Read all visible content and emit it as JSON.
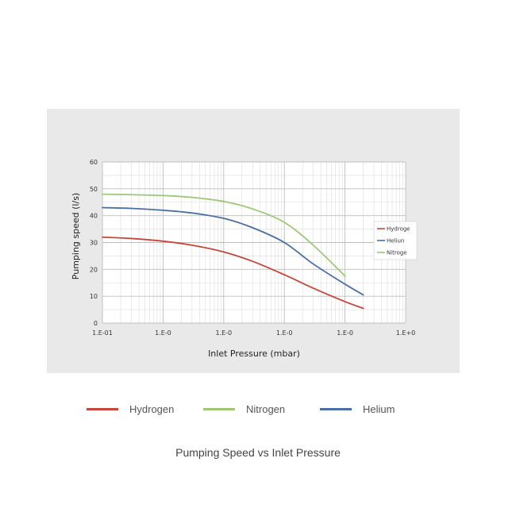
{
  "caption": "Pumping Speed vs Inlet Pressure",
  "colors": {
    "hydrogen": "#c9443a",
    "nitrogen": "#9dc876",
    "helium": "#4a6fa5",
    "panel_bg": "#e9e9e9",
    "plot_bg": "#ffffff",
    "grid_major": "#bdbdbd",
    "grid_minor": "#dcdcdc"
  },
  "bottom_legend": [
    {
      "label": "Hydrogen",
      "color": "#c9443a"
    },
    {
      "label": "Nitrogen",
      "color": "#9dc876"
    },
    {
      "label": "Helium",
      "color": "#4a6fa5"
    }
  ],
  "chart_data": {
    "type": "line",
    "title": "",
    "xlabel": "Inlet Pressure (mbar)",
    "ylabel": "Pumping speed (l/s)",
    "xscale": "log",
    "xlim": [
      1e-10,
      1e-05
    ],
    "ylim": [
      0,
      60
    ],
    "xticks": [
      1e-10,
      1e-09,
      1e-08,
      1e-07,
      1e-06,
      1e-05
    ],
    "xtick_labels": [
      "1.E-01",
      "1.E-0",
      "1.E-0",
      "1.E-0",
      "1.E-0",
      "1.E+0"
    ],
    "yticks": [
      0,
      10,
      20,
      30,
      40,
      50,
      60
    ],
    "ytick_labels": [
      "0",
      "10",
      "20",
      "30",
      "40",
      "50",
      "60"
    ],
    "grid": true,
    "legend_position": "right",
    "series": [
      {
        "name": "Hydroge",
        "color": "#c9443a",
        "x": [
          1e-10,
          3e-10,
          1e-09,
          3e-09,
          1e-08,
          3e-08,
          1e-07,
          3e-07,
          1e-06,
          2e-06
        ],
        "y": [
          32,
          31.5,
          30.5,
          29,
          26.5,
          23,
          18,
          13,
          8,
          5.5
        ]
      },
      {
        "name": "Heliun",
        "color": "#4a6fa5",
        "x": [
          1e-10,
          3e-10,
          1e-09,
          3e-09,
          1e-08,
          3e-08,
          1e-07,
          3e-07,
          1e-06,
          2e-06
        ],
        "y": [
          43,
          42.7,
          42,
          41,
          39,
          35.5,
          30,
          22,
          14.5,
          10.5
        ]
      },
      {
        "name": "Nitroge",
        "color": "#9dc876",
        "x": [
          1e-10,
          3e-10,
          1e-09,
          3e-09,
          1e-08,
          3e-08,
          1e-07,
          3e-07,
          1e-06
        ],
        "y": [
          48,
          47.8,
          47.5,
          46.8,
          45.3,
          42.5,
          37.5,
          29,
          17.5
        ]
      }
    ]
  }
}
